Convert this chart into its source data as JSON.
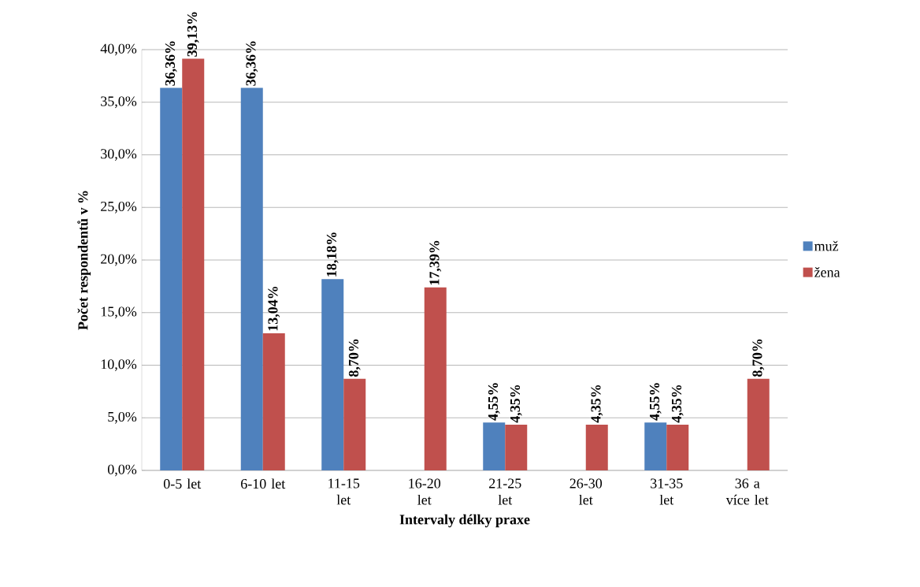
{
  "chart_data": {
    "type": "bar",
    "xlabel": "Intervaly délky praxe",
    "ylabel": "Počet respondentů v %",
    "categories": [
      "0-5 let",
      "6-10 let",
      "11-15 let",
      "16-20 let",
      "21-25 let",
      "26-30 let",
      "31-35 let",
      "36 a více let"
    ],
    "series": [
      {
        "name": "muž",
        "color": "#4f81bd",
        "values": [
          36.36,
          36.36,
          18.18,
          null,
          4.55,
          null,
          4.55,
          null
        ],
        "value_labels": [
          "36,36%",
          "36,36%",
          "18,18%",
          null,
          "4,55%",
          null,
          "4,55%",
          null
        ]
      },
      {
        "name": "žena",
        "color": "#c0504d",
        "values": [
          39.13,
          13.04,
          8.7,
          17.39,
          4.35,
          4.35,
          4.35,
          8.7
        ],
        "value_labels": [
          "39,13%",
          "13,04%",
          "8,70%",
          "17,39%",
          "4,35%",
          "4,35%",
          "4,35%",
          "8,70%"
        ]
      }
    ],
    "ylim": [
      0,
      40
    ],
    "yticks": [
      {
        "value": 0,
        "label": "0,0%"
      },
      {
        "value": 5,
        "label": "5,0%"
      },
      {
        "value": 10,
        "label": "10,0%"
      },
      {
        "value": 15,
        "label": "15,0%"
      },
      {
        "value": 20,
        "label": "20,0%"
      },
      {
        "value": 25,
        "label": "25,0%"
      },
      {
        "value": 30,
        "label": "30,0%"
      },
      {
        "value": 35,
        "label": "35,0%"
      },
      {
        "value": 40,
        "label": "40,0%"
      }
    ],
    "grid": "y",
    "legend": "right"
  }
}
